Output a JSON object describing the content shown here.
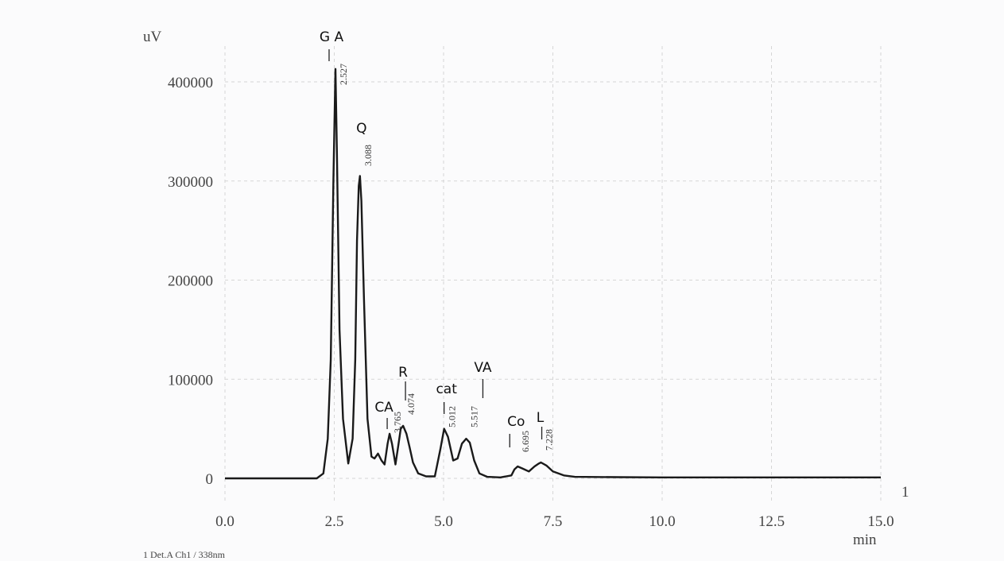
{
  "chart_data": {
    "type": "line",
    "ylabel": "uV",
    "xlabel": "min",
    "xlim": [
      0,
      15
    ],
    "ylim": [
      -20000,
      450000
    ],
    "x_ticks": [
      "0.0",
      "2.5",
      "5.0",
      "7.5",
      "10.0",
      "12.5",
      "15.0"
    ],
    "y_ticks": [
      "0",
      "100000",
      "200000",
      "300000",
      "400000"
    ],
    "grid": true,
    "detector_label": "1  Det.A Ch1 / 338nm",
    "channel_marker": "1",
    "series": [
      {
        "x": [
          0.0,
          1.5,
          2.1,
          2.25,
          2.35,
          2.42,
          2.48,
          2.527,
          2.56,
          2.62,
          2.7,
          2.82,
          2.92,
          2.98,
          3.02,
          3.06,
          3.088,
          3.12,
          3.18,
          3.26,
          3.35,
          3.42,
          3.5,
          3.58,
          3.65,
          3.72,
          3.765,
          3.82,
          3.9,
          3.97,
          4.02,
          4.074,
          4.15,
          4.22,
          4.3,
          4.42,
          4.6,
          4.8,
          4.93,
          5.012,
          5.1,
          5.22,
          5.32,
          5.42,
          5.517,
          5.6,
          5.7,
          5.82,
          6.0,
          6.3,
          6.55,
          6.62,
          6.695,
          6.8,
          6.95,
          7.08,
          7.18,
          7.228,
          7.35,
          7.5,
          7.75,
          8.0,
          9.0,
          10.0,
          11.0,
          12.0,
          13.0,
          14.0,
          15.0
        ],
        "y": [
          0,
          0,
          0,
          5000,
          40000,
          120000,
          300000,
          413000,
          330000,
          150000,
          60000,
          15000,
          40000,
          120000,
          240000,
          295000,
          305000,
          280000,
          180000,
          60000,
          22000,
          20000,
          25000,
          18000,
          14000,
          35000,
          45000,
          35000,
          14000,
          35000,
          50000,
          53000,
          45000,
          32000,
          16000,
          5000,
          2000,
          2000,
          30000,
          50000,
          42000,
          18000,
          20000,
          35000,
          40000,
          36000,
          18000,
          5000,
          1500,
          1000,
          3000,
          9000,
          12000,
          10000,
          7000,
          12000,
          15000,
          16000,
          13000,
          7000,
          3000,
          1500,
          1200,
          1000,
          1000,
          1000,
          1000,
          1000,
          1000
        ]
      }
    ],
    "annotations": [
      {
        "name": "G A",
        "rt": "2.527",
        "x": 2.527
      },
      {
        "name": "Q",
        "rt": "3.088",
        "x": 3.088
      },
      {
        "name": "CA",
        "rt": "3.765",
        "x": 3.765
      },
      {
        "name": "R",
        "rt": "4.074",
        "x": 4.074
      },
      {
        "name": "cat",
        "rt": "5.012",
        "x": 5.012
      },
      {
        "name": "VA",
        "rt": "5.517",
        "x": 5.517
      },
      {
        "name": "Co",
        "rt": "6.695",
        "x": 6.695
      },
      {
        "name": "L",
        "rt": "7.228",
        "x": 7.228
      }
    ]
  }
}
